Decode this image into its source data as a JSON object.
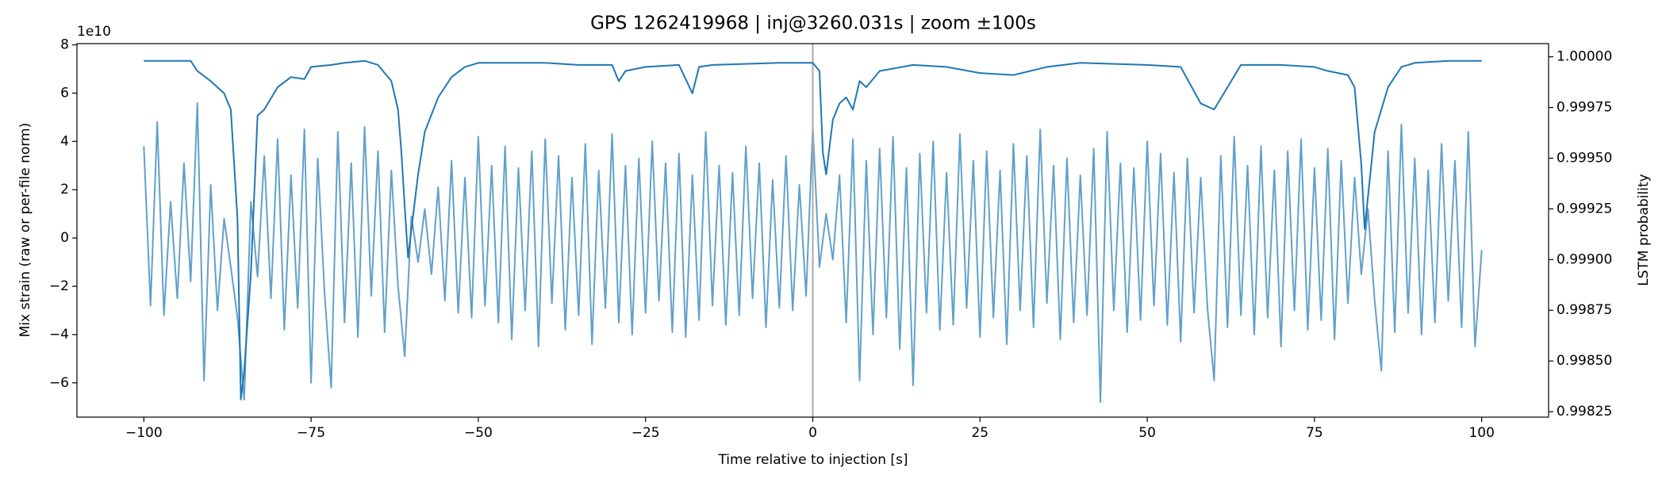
{
  "chart_data": {
    "type": "line",
    "title": "GPS 1262419968 | inj@3260.031s | zoom ±100s",
    "x_label": "Time relative to injection [s]",
    "y_label": "Mix strain (raw or per-file norm)",
    "y2_label": "LSTM probability",
    "y_offset_label": "1e10",
    "xlim": [
      -110,
      110
    ],
    "xticks": [
      {
        "value": -100,
        "label": "−100"
      },
      {
        "value": -75,
        "label": "−75"
      },
      {
        "value": -50,
        "label": "−50"
      },
      {
        "value": -25,
        "label": "−25"
      },
      0,
      25,
      50,
      75,
      100
    ],
    "ylim": [
      -7.42,
      8.05
    ],
    "yticks": [
      {
        "value": -6,
        "label": "−6"
      },
      {
        "value": -4,
        "label": "−4"
      },
      {
        "value": -2,
        "label": "−2"
      },
      0,
      2,
      4,
      6,
      8
    ],
    "y2lim": [
      0.998223,
      1.000065
    ],
    "y2ticks": [
      0.99825,
      {
        "value": 0.9985,
        "label": "0.99850"
      },
      0.99875,
      {
        "value": 0.999,
        "label": "0.99900"
      },
      0.99925,
      {
        "value": 0.9995,
        "label": "0.99950"
      },
      0.99975,
      {
        "value": 1,
        "label": "1.00000"
      }
    ],
    "vline": {
      "x": 0,
      "color": "#aaaaaa"
    },
    "series": [
      {
        "color": "#1f77b4",
        "alpha": 0.7,
        "axis": "y",
        "x": [
          -100,
          -99,
          -98,
          -97,
          -96,
          -95,
          -94,
          -93,
          -92,
          -91,
          -90,
          -89,
          -88,
          -87,
          -86,
          -85,
          -84,
          -83,
          -82,
          -81,
          -80,
          -79,
          -78,
          -77,
          -76,
          -75,
          -74,
          -73,
          -72,
          -71,
          -70,
          -69,
          -68,
          -67,
          -66,
          -65,
          -64,
          -63,
          -62,
          -61,
          -60,
          -59,
          -58,
          -57,
          -56,
          -55,
          -54,
          -53,
          -52,
          -51,
          -50,
          -49,
          -48,
          -47,
          -46,
          -45,
          -44,
          -43,
          -42,
          -41,
          -40,
          -39,
          -38,
          -37,
          -36,
          -35,
          -34,
          -33,
          -32,
          -31,
          -30,
          -29,
          -28,
          -27,
          -26,
          -25,
          -24,
          -23,
          -22,
          -21,
          -20,
          -19,
          -18,
          -17,
          -16,
          -15,
          -14,
          -13,
          -12,
          -11,
          -10,
          -9,
          -8,
          -7,
          -6,
          -5,
          -4,
          -3,
          -2,
          -1,
          0,
          1,
          2,
          3,
          4,
          5,
          6,
          7,
          8,
          9,
          10,
          11,
          12,
          13,
          14,
          15,
          16,
          17,
          18,
          19,
          20,
          21,
          22,
          23,
          24,
          25,
          26,
          27,
          28,
          29,
          30,
          31,
          32,
          33,
          34,
          35,
          36,
          37,
          38,
          39,
          40,
          41,
          42,
          43,
          44,
          45,
          46,
          47,
          48,
          49,
          50,
          51,
          52,
          53,
          54,
          55,
          56,
          57,
          58,
          59,
          60,
          61,
          62,
          63,
          64,
          65,
          66,
          67,
          68,
          69,
          70,
          71,
          72,
          73,
          74,
          75,
          76,
          77,
          78,
          79,
          80,
          81,
          82,
          83,
          84,
          85,
          86,
          87,
          88,
          89,
          90,
          91,
          92,
          93,
          94,
          95,
          96,
          97,
          98,
          99,
          100
        ],
        "values": [
          3.8,
          -2.8,
          4.8,
          -3.2,
          1.5,
          -2.5,
          3.1,
          -1.8,
          5.6,
          -5.9,
          2.2,
          -3.0,
          0.8,
          -1.2,
          -3.3,
          -6.7,
          1.5,
          -1.6,
          3.4,
          -2.5,
          4.1,
          -3.8,
          2.6,
          -2.9,
          4.5,
          -6.0,
          3.3,
          -2.2,
          -6.2,
          4.4,
          -3.5,
          3.1,
          -4.1,
          4.6,
          -2.4,
          3.6,
          -3.9,
          2.8,
          -2.0,
          -4.9,
          0.9,
          -1.0,
          1.2,
          -1.5,
          2.1,
          -2.6,
          3.2,
          -3.1,
          2.5,
          -3.3,
          4.2,
          -2.8,
          3.0,
          -3.5,
          3.8,
          -4.2,
          2.9,
          -3.0,
          3.6,
          -4.5,
          4.1,
          -2.7,
          3.4,
          -3.8,
          2.5,
          -3.2,
          3.9,
          -4.4,
          2.8,
          -2.9,
          4.3,
          -3.5,
          3.0,
          -4.0,
          3.3,
          -3.1,
          4.0,
          -2.6,
          3.1,
          -3.9,
          3.5,
          -4.1,
          2.6,
          -3.4,
          4.4,
          -2.8,
          3.0,
          -3.6,
          2.7,
          -3.2,
          3.8,
          -2.5,
          3.1,
          -3.7,
          2.4,
          -2.9,
          3.4,
          -3.0,
          2.2,
          -2.4,
          4.6,
          -1.2,
          1.0,
          -0.9,
          2.6,
          -3.5,
          4.1,
          -5.9,
          3.2,
          -4.0,
          3.7,
          -3.3,
          4.2,
          -4.6,
          2.9,
          -6.1,
          3.5,
          -3.1,
          4.0,
          -3.8,
          2.7,
          -3.6,
          4.3,
          -2.9,
          3.2,
          -4.1,
          3.6,
          -3.3,
          2.8,
          -4.4,
          3.9,
          -3.0,
          3.4,
          -3.7,
          4.5,
          -2.7,
          3.0,
          -4.2,
          3.3,
          -3.5,
          2.6,
          -3.2,
          3.7,
          -6.8,
          4.4,
          -3.0,
          3.1,
          -3.9,
          2.9,
          -3.4,
          4.0,
          -2.8,
          3.5,
          -3.6,
          2.7,
          -4.3,
          3.3,
          -3.1,
          2.5,
          -2.9,
          -5.9,
          3.4,
          -3.7,
          4.2,
          -3.2,
          3.0,
          -4.0,
          3.8,
          -3.3,
          2.8,
          -4.5,
          3.6,
          -3.0,
          4.1,
          -3.8,
          2.9,
          -3.4,
          3.7,
          -4.2,
          3.2,
          -2.7,
          2.5,
          -1.5,
          1.2,
          -2.6,
          -5.5,
          3.6,
          -3.9,
          4.7,
          -3.1,
          3.3,
          -4.0,
          2.8,
          -3.5,
          3.9,
          -2.6,
          3.2,
          -3.7,
          4.4,
          -4.5,
          -0.5
        ]
      },
      {
        "color": "#1f77b4",
        "alpha": 1,
        "axis": "y2",
        "x": [
          -100,
          -93,
          -92,
          -90,
          -89,
          -88,
          -87,
          -86,
          -85.5,
          -85,
          -84,
          -83,
          -82,
          -80,
          -78,
          -76,
          -75,
          -72,
          -70,
          -67,
          -65,
          -63,
          -62,
          -61.5,
          -61,
          -60.5,
          -60,
          -59,
          -58,
          -56,
          -54,
          -52,
          -50,
          -40,
          -35,
          -30,
          -29,
          -28,
          -25,
          -20,
          -18,
          -17,
          -15,
          -5,
          0,
          1,
          1.5,
          2,
          3,
          4,
          5,
          6,
          7,
          8,
          10,
          15,
          20,
          25,
          30,
          35,
          40,
          50,
          55,
          58,
          60,
          62,
          64,
          70,
          75,
          77,
          80,
          81,
          82,
          82.5,
          83,
          84,
          86,
          88,
          90,
          95,
          100
        ],
        "values": [
          0.99998,
          0.99998,
          0.99993,
          0.99988,
          0.99985,
          0.99982,
          0.99974,
          0.9992,
          0.99831,
          0.99845,
          0.99893,
          0.99971,
          0.99974,
          0.99985,
          0.9999,
          0.99989,
          0.99995,
          0.99996,
          0.99997,
          0.99998,
          0.99996,
          0.99988,
          0.99974,
          0.99953,
          0.99926,
          0.99901,
          0.99915,
          0.99942,
          0.99963,
          0.9998,
          0.9999,
          0.99995,
          0.99997,
          0.99997,
          0.99996,
          0.99996,
          0.99988,
          0.99993,
          0.99995,
          0.99996,
          0.99982,
          0.99995,
          0.99996,
          0.99997,
          0.99997,
          0.99993,
          0.99953,
          0.99942,
          0.99969,
          0.99977,
          0.9998,
          0.99974,
          0.99988,
          0.99985,
          0.99993,
          0.99996,
          0.99995,
          0.99992,
          0.99991,
          0.99995,
          0.99997,
          0.99996,
          0.99995,
          0.99977,
          0.99974,
          0.99985,
          0.99996,
          0.99996,
          0.99995,
          0.99993,
          0.99991,
          0.99985,
          0.99947,
          0.99915,
          0.99931,
          0.99963,
          0.99985,
          0.99995,
          0.99997,
          0.99998,
          0.99998
        ]
      }
    ]
  }
}
